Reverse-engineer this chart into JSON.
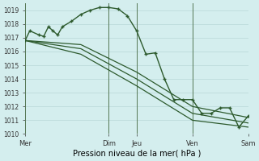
{
  "xlabel": "Pression niveau de la mer( hPa )",
  "background_color": "#d4eeee",
  "grid_color": "#b8d8d8",
  "line_color": "#2d5a2d",
  "ylim": [
    1010,
    1019.5
  ],
  "ytick_min": 1010,
  "ytick_max": 1019,
  "x_day_labels": [
    "Mer",
    "Dim",
    "Jeu",
    "Ven",
    "Sam"
  ],
  "x_day_positions": [
    0,
    9,
    12,
    18,
    24
  ],
  "vline_positions": [
    0,
    9,
    12,
    18,
    24
  ],
  "series1_x": [
    0,
    0.5,
    1.5,
    2,
    2.5,
    3,
    3.5,
    4,
    5,
    6,
    7,
    8,
    9,
    10,
    11,
    12,
    13,
    14,
    15,
    16,
    17,
    18,
    19,
    20,
    21,
    22,
    23,
    24
  ],
  "series1_y": [
    1016.8,
    1017.5,
    1017.2,
    1017.1,
    1017.8,
    1017.5,
    1017.2,
    1017.8,
    1018.2,
    1018.7,
    1019.0,
    1019.2,
    1019.2,
    1019.1,
    1018.6,
    1017.5,
    1015.8,
    1015.9,
    1014.0,
    1012.5,
    1012.5,
    1012.5,
    1011.5,
    1011.5,
    1011.9,
    1011.9,
    1010.5,
    1011.3
  ],
  "series2_x": [
    0,
    6,
    12,
    18,
    24
  ],
  "series2_y": [
    1016.8,
    1016.5,
    1014.5,
    1012.0,
    1011.2
  ],
  "series3_x": [
    0,
    6,
    12,
    18,
    24
  ],
  "series3_y": [
    1016.8,
    1016.2,
    1014.0,
    1011.5,
    1010.8
  ],
  "series4_x": [
    0,
    6,
    12,
    18,
    24
  ],
  "series4_y": [
    1016.8,
    1015.8,
    1013.5,
    1011.0,
    1010.5
  ]
}
